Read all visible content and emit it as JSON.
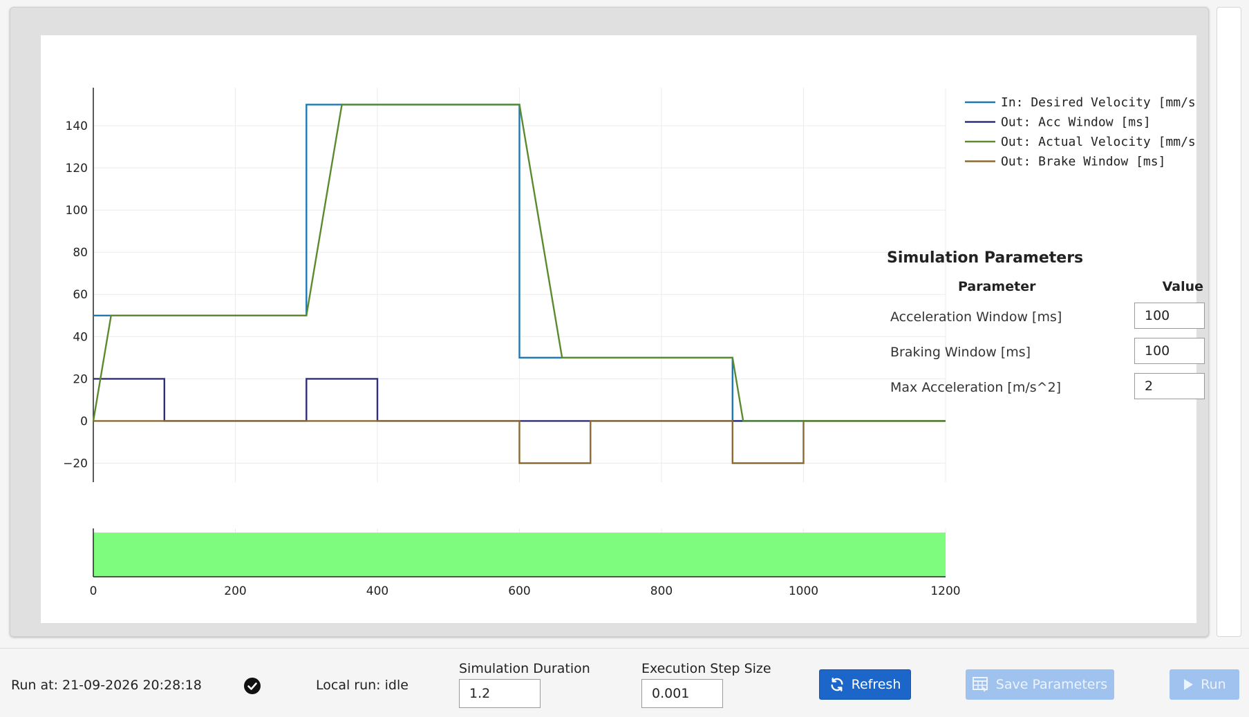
{
  "chart_data": {
    "type": "line",
    "xlim": [
      0,
      1200
    ],
    "ylim": [
      -29,
      158
    ],
    "x_ticks": [
      "0",
      "200",
      "400",
      "600",
      "800",
      "1000",
      "1200"
    ],
    "y_ticks": [
      "−20",
      "0",
      "20",
      "40",
      "60",
      "80",
      "100",
      "120",
      "140"
    ],
    "grid": true,
    "legend_position": "top-right",
    "series": [
      {
        "name": "In: Desired Velocity [mm/s]",
        "color": "#1f77b4",
        "points": [
          [
            0,
            50
          ],
          [
            300,
            50
          ],
          [
            300,
            150
          ],
          [
            600,
            150
          ],
          [
            600,
            30
          ],
          [
            900,
            30
          ],
          [
            900,
            0
          ],
          [
            1200,
            0
          ]
        ]
      },
      {
        "name": "Out: Acc Window [ms]",
        "color": "#2e2e7a",
        "points": [
          [
            0,
            20
          ],
          [
            100,
            20
          ],
          [
            100,
            0
          ],
          [
            300,
            0
          ],
          [
            300,
            20
          ],
          [
            400,
            20
          ],
          [
            400,
            0
          ],
          [
            1200,
            0
          ]
        ]
      },
      {
        "name": "Out: Actual Velocity [mm/s]",
        "color": "#5a8a2e",
        "points": [
          [
            0,
            0
          ],
          [
            25,
            50
          ],
          [
            300,
            50
          ],
          [
            350,
            150
          ],
          [
            600,
            150
          ],
          [
            660,
            30
          ],
          [
            900,
            30
          ],
          [
            915,
            0
          ],
          [
            1200,
            0
          ]
        ]
      },
      {
        "name": "Out: Brake Window [ms]",
        "color": "#8b6a32",
        "points": [
          [
            0,
            0
          ],
          [
            600,
            0
          ],
          [
            600,
            -20
          ],
          [
            700,
            -20
          ],
          [
            700,
            0
          ],
          [
            900,
            0
          ],
          [
            900,
            -20
          ],
          [
            1000,
            -20
          ],
          [
            1000,
            0
          ],
          [
            1200,
            0
          ]
        ]
      }
    ],
    "status_band": {
      "x_range": [
        0,
        1200
      ],
      "color": "#7dfc7d"
    }
  },
  "params": {
    "title": "Simulation Parameters",
    "col_param": "Parameter",
    "col_value": "Value",
    "rows": [
      {
        "label": "Acceleration Window [ms]",
        "value": "100"
      },
      {
        "label": "Braking Window [ms]",
        "value": "100"
      },
      {
        "label": "Max Acceleration [m/s^2]",
        "value": "2"
      }
    ]
  },
  "bottom": {
    "run_at": "Run at: 21-09-2026 20:28:18",
    "status_icon": "check-circle-icon",
    "local_run": "Local run: idle",
    "sim_duration_label": "Simulation Duration",
    "sim_duration_value": "1.2",
    "step_size_label": "Execution Step Size",
    "step_size_value": "0.001",
    "refresh_label": "Refresh",
    "save_label": "Save Parameters",
    "run_label": "Run"
  }
}
